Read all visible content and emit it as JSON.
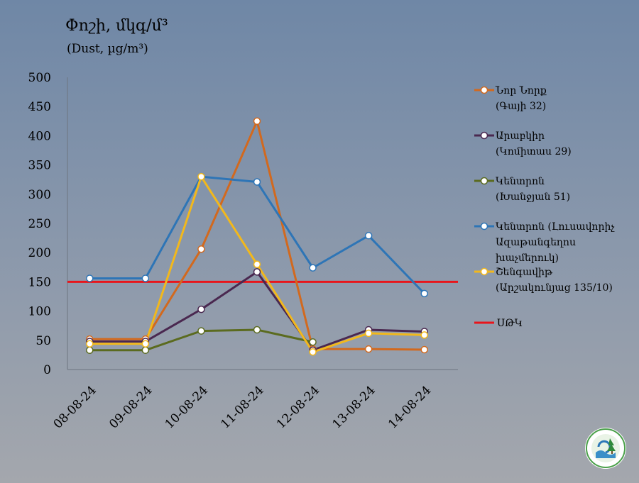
{
  "chart_data": {
    "type": "line",
    "title": "Փոշի, մկգ/մ³",
    "subtitle": "(Dust, µg/m³)",
    "categories": [
      "08-08-24",
      "09-08-24",
      "10-08-24",
      "11-08-24",
      "12-08-24",
      "13-08-24",
      "14-08-24"
    ],
    "ylim": [
      0,
      500
    ],
    "yticks": [
      0,
      50,
      100,
      150,
      200,
      250,
      300,
      350,
      400,
      450,
      500
    ],
    "grid": false,
    "legend_position": "right",
    "series": [
      {
        "name_lines": [
          "Նոր Նորք",
          "(Գայի 32)"
        ],
        "color": "#d2691e",
        "values": [
          52,
          52,
          206,
          425,
          35,
          35,
          34
        ]
      },
      {
        "name_lines": [
          "Արաբկիր",
          "(Կոմիտաս 29)"
        ],
        "color": "#4a2850",
        "values": [
          48,
          48,
          103,
          167,
          33,
          68,
          65
        ]
      },
      {
        "name_lines": [
          "Կենտրոն",
          "(Խանջյան 51)"
        ],
        "color": "#5b6b1f",
        "values": [
          33,
          33,
          66,
          68,
          47,
          null,
          null
        ]
      },
      {
        "name_lines": [
          "Կենտրոն (Լուսավորիչ",
          "Ազաթանգեղոս",
          "խաչմերուկ)"
        ],
        "color": "#2e75b6",
        "values": [
          156,
          156,
          330,
          321,
          174,
          229,
          130
        ]
      },
      {
        "name_lines": [
          "Շենգավիթ",
          "(Արշակունյաց 135/10)"
        ],
        "color": "#f2b81c",
        "values": [
          44,
          44,
          330,
          180,
          30,
          62,
          59
        ]
      }
    ],
    "reference_line": {
      "name": "ՍԹԿ",
      "value": 150,
      "color": "#e8151b"
    }
  }
}
